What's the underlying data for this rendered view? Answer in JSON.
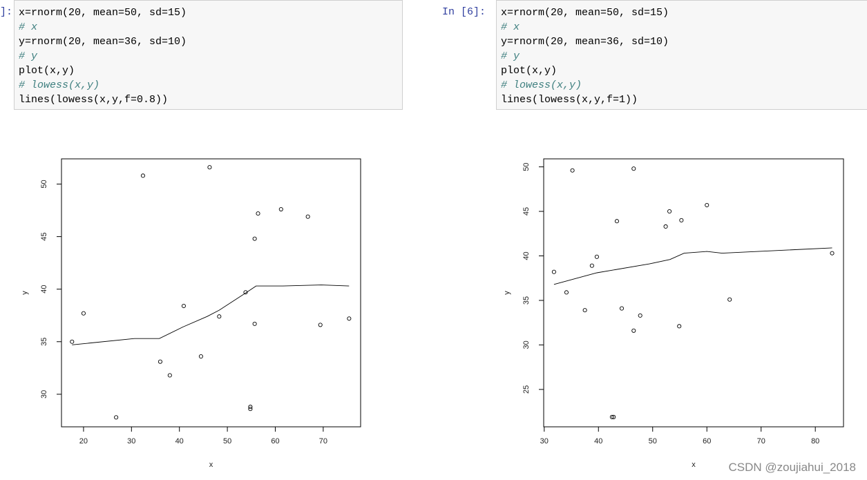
{
  "cells": [
    {
      "prompt": "]:",
      "lines": [
        "x=rnorm(20, mean=50, sd=15)",
        "# x",
        "y=rnorm(20, mean=36, sd=10)",
        "# y",
        "plot(x,y)",
        "# lowess(x,y)",
        "lines(lowess(x,y,f=0.8))"
      ]
    },
    {
      "prompt": "In [6]:",
      "lines": [
        "x=rnorm(20, mean=50, sd=15)",
        "# x",
        "y=rnorm(20, mean=36, sd=10)",
        "# y",
        "plot(x,y)",
        "# lowess(x,y)",
        "lines(lowess(x,y,f=1))"
      ]
    }
  ],
  "chart_data": [
    {
      "type": "scatter",
      "x_label": "x",
      "y_label": "y",
      "color": "#000000",
      "xlim": [
        15.4,
        77.8
      ],
      "ylim": [
        26.9,
        52.4
      ],
      "xticks": [
        20,
        30,
        40,
        50,
        60,
        70
      ],
      "yticks": [
        30,
        35,
        40,
        45,
        50
      ],
      "points": {
        "x": [
          17.6,
          20.0,
          26.8,
          32.4,
          36.0,
          38.0,
          40.9,
          44.5,
          46.3,
          48.3,
          53.8,
          54.8,
          54.8,
          55.7,
          55.7,
          56.4,
          61.2,
          66.8,
          69.4,
          75.4
        ],
        "y": [
          35.0,
          37.7,
          27.8,
          50.8,
          33.1,
          31.8,
          38.4,
          33.6,
          51.6,
          37.4,
          39.7,
          28.8,
          28.6,
          44.8,
          36.7,
          47.2,
          47.6,
          46.9,
          36.6,
          37.2
        ]
      },
      "line": {
        "x": [
          17.6,
          30.6,
          35.8,
          40.7,
          45.8,
          48.3,
          53.7,
          56.0,
          61.6,
          69.6,
          75.4
        ],
        "y": [
          34.7,
          35.3,
          35.3,
          36.4,
          37.4,
          38.0,
          39.6,
          40.3,
          40.3,
          40.4,
          40.3
        ]
      }
    },
    {
      "type": "scatter",
      "x_label": "x",
      "y_label": "y",
      "color": "#000000",
      "xlim": [
        29.9,
        85.2
      ],
      "ylim": [
        20.8,
        50.9
      ],
      "xticks": [
        30,
        40,
        50,
        60,
        70,
        80
      ],
      "yticks": [
        25,
        30,
        35,
        40,
        45,
        50
      ],
      "points": {
        "x": [
          31.8,
          35.2,
          34.1,
          37.5,
          38.8,
          39.7,
          42.5,
          42.8,
          43.4,
          44.3,
          46.5,
          46.5,
          47.7,
          52.4,
          53.1,
          54.9,
          55.3,
          60.0,
          64.2,
          83.1
        ],
        "y": [
          38.2,
          49.6,
          35.9,
          33.9,
          38.9,
          39.9,
          21.9,
          21.9,
          43.9,
          34.1,
          49.8,
          31.6,
          33.3,
          43.3,
          45.0,
          32.1,
          44.0,
          45.7,
          35.1,
          40.3
        ]
      },
      "line": {
        "x": [
          31.8,
          39.7,
          49.4,
          53.2,
          55.8,
          60.0,
          62.8,
          83.1
        ],
        "y": [
          36.8,
          38.1,
          39.1,
          39.6,
          40.3,
          40.5,
          40.3,
          40.9
        ]
      }
    }
  ],
  "watermark": "CSDN @zoujiahui_2018"
}
